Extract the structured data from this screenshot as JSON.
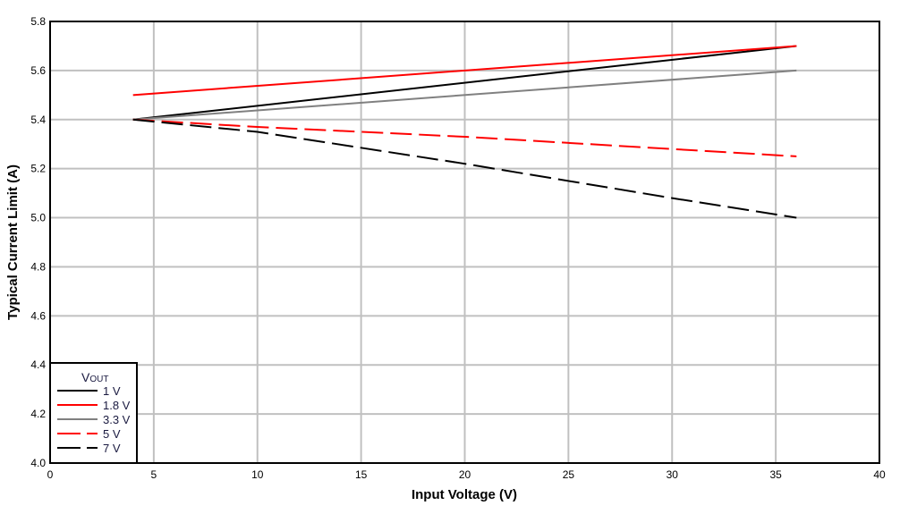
{
  "chart_data": {
    "type": "line",
    "title": "",
    "xlabel": "Input Voltage (V)",
    "ylabel": "Typical Current Limit (A)",
    "xlim": [
      0,
      40
    ],
    "ylim": [
      4.0,
      5.8
    ],
    "xticks": [
      "0",
      "5",
      "10",
      "15",
      "20",
      "25",
      "30",
      "35",
      "40"
    ],
    "yticks": [
      "4.0",
      "4.2",
      "4.4",
      "4.6",
      "4.8",
      "5.0",
      "5.2",
      "5.4",
      "5.6",
      "5.8"
    ],
    "grid": true,
    "legend_title": "V",
    "legend_title_sub": "OUT",
    "legend_position": "bottom-left",
    "series": [
      {
        "name": "1 V",
        "color": "#000000",
        "dash": "solid",
        "x": [
          4,
          36
        ],
        "y": [
          5.4,
          5.7
        ]
      },
      {
        "name": "1.8 V",
        "color": "#ff0000",
        "dash": "solid",
        "x": [
          4,
          36
        ],
        "y": [
          5.5,
          5.7
        ]
      },
      {
        "name": "3.3 V",
        "color": "#808080",
        "dash": "solid",
        "x": [
          4,
          36
        ],
        "y": [
          5.4,
          5.6
        ]
      },
      {
        "name": "5 V",
        "color": "#ff0000",
        "dash": "dashed",
        "x": [
          4,
          10,
          20,
          30,
          36
        ],
        "y": [
          5.4,
          5.37,
          5.33,
          5.28,
          5.25
        ]
      },
      {
        "name": "7 V",
        "color": "#000000",
        "dash": "dashed",
        "x": [
          4,
          10,
          20,
          30,
          36
        ],
        "y": [
          5.4,
          5.35,
          5.22,
          5.08,
          5.0
        ]
      }
    ]
  }
}
